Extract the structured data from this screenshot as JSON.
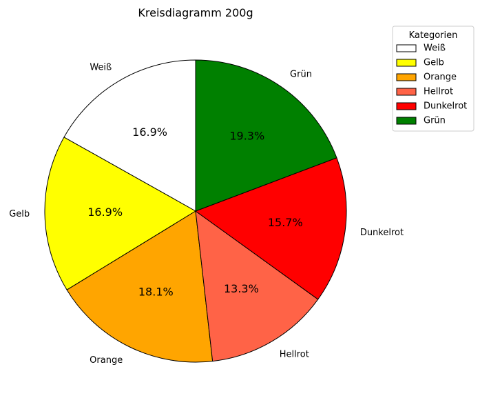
{
  "chart_data": {
    "type": "pie",
    "title": "Kreisdiagramm 200g",
    "start_angle_deg": 90,
    "direction": "counterclockwise",
    "slices": [
      {
        "label": "Weiß",
        "value": 16.9,
        "pct_label": "16.9%",
        "color": "#ffffff"
      },
      {
        "label": "Gelb",
        "value": 16.9,
        "pct_label": "16.9%",
        "color": "#ffff00"
      },
      {
        "label": "Orange",
        "value": 18.1,
        "pct_label": "18.1%",
        "color": "#ffa500"
      },
      {
        "label": "Hellrot",
        "value": 13.3,
        "pct_label": "13.3%",
        "color": "#ff6347"
      },
      {
        "label": "Dunkelrot",
        "value": 15.7,
        "pct_label": "15.7%",
        "color": "#ff0000"
      },
      {
        "label": "Grün",
        "value": 19.3,
        "pct_label": "19.3%",
        "color": "#008000"
      }
    ],
    "legend": {
      "title": "Kategorien",
      "placement": "upper right outside",
      "entries": [
        "Weiß",
        "Gelb",
        "Orange",
        "Hellrot",
        "Dunkelrot",
        "Grün"
      ]
    }
  }
}
